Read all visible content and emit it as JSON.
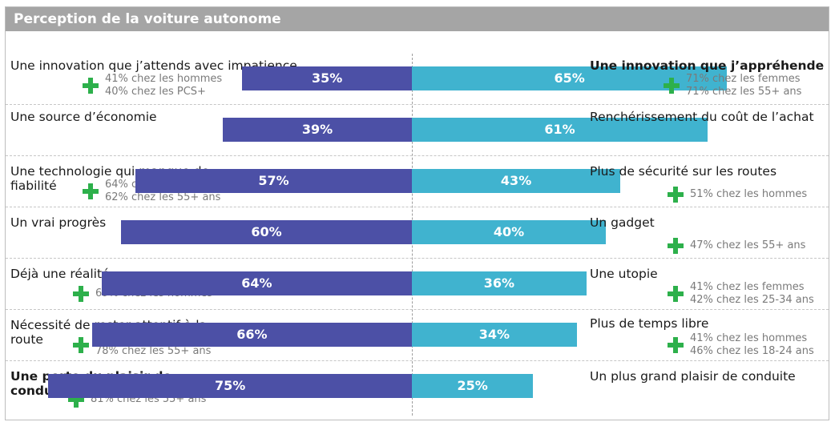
{
  "header": {
    "title": "Perception de la voiture autonome"
  },
  "colors": {
    "left_bar": "#4c50a6",
    "right_bar": "#40b3cf",
    "plus": "#2db04b",
    "title_bg": "#a5a5a5"
  },
  "icons": {
    "note_marker": "plus-icon"
  },
  "chart_data": {
    "type": "bar",
    "orientation": "horizontal-diverging",
    "title": "Perception de la voiture autonome",
    "xlim": [
      0,
      100
    ],
    "grid": false,
    "rows": [
      {
        "left": "Une innovation que j’attends avec impatience",
        "left_notes": [
          "41% chez les hommes",
          "40% chez les PCS+"
        ],
        "left_value": 35,
        "left_label": "35%",
        "right_value": 65,
        "right_label": "65%",
        "right": "Une innovation que j’appréhende",
        "right_bold": true,
        "right_notes": [
          "71% chez les femmes",
          "71% chez les 55+ ans"
        ]
      },
      {
        "left": "Une source d’économie",
        "left_notes": [],
        "left_value": 39,
        "left_label": "39%",
        "right_value": 61,
        "right_label": "61%",
        "right": "Renchérissement du coût de l’achat",
        "right_notes": []
      },
      {
        "left": "Une technologie qui manque de fiabilité",
        "left_notes": [
          "64% chez les femmes",
          "62% chez les 55+ ans"
        ],
        "left_value": 57,
        "left_label": "57%",
        "right_value": 43,
        "right_label": "43%",
        "right": "Plus de sécurité sur les routes",
        "right_notes": [
          "51% chez les hommes"
        ]
      },
      {
        "left": "Un vrai progrès",
        "left_notes": [],
        "left_value": 60,
        "left_label": "60%",
        "right_value": 40,
        "right_label": "40%",
        "right": "Un gadget",
        "right_notes": [
          "47% chez les 55+ ans"
        ]
      },
      {
        "left": "Déjà une réalité",
        "left_notes": [
          "69% chez les hommes"
        ],
        "left_value": 64,
        "left_label": "64%",
        "right_value": 36,
        "right_label": "36%",
        "right": "Une utopie",
        "right_notes": [
          "41% chez les femmes",
          "42% chez les 25-34 ans"
        ]
      },
      {
        "left": "Nécessité de rester attentif à la route",
        "left_notes": [
          "73% chez les femmes",
          "78% chez les 55+ ans"
        ],
        "left_value": 66,
        "left_label": "66%",
        "right_value": 34,
        "right_label": "34%",
        "right": "Plus de temps libre",
        "right_notes": [
          "41% chez les hommes",
          "46% chez les 18-24 ans"
        ]
      },
      {
        "left": "Une perte du plaisir de conduire",
        "left_bold": true,
        "left_notes": [
          "81% chez les 55+ ans"
        ],
        "left_value": 75,
        "left_label": "75%",
        "right_value": 25,
        "right_label": "25%",
        "right": "Un plus grand plaisir de conduite",
        "right_notes": []
      }
    ]
  }
}
